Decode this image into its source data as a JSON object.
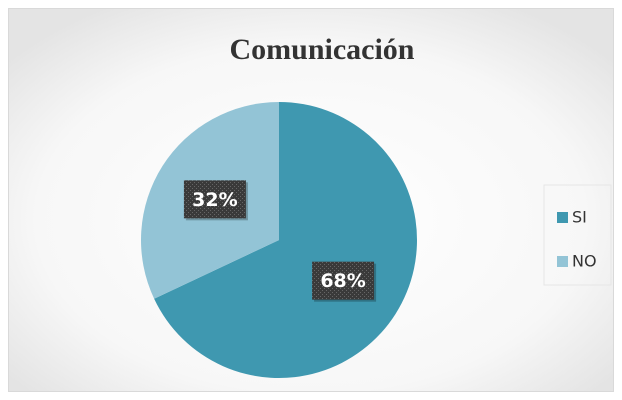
{
  "chart_data": {
    "type": "pie",
    "title": "Comunicación",
    "categories": [
      "SI",
      "NO"
    ],
    "values": [
      68,
      32
    ],
    "value_labels": [
      "68%",
      "32%"
    ],
    "colors": [
      "#3f98b0",
      "#93c4d6"
    ],
    "legend": "right"
  }
}
